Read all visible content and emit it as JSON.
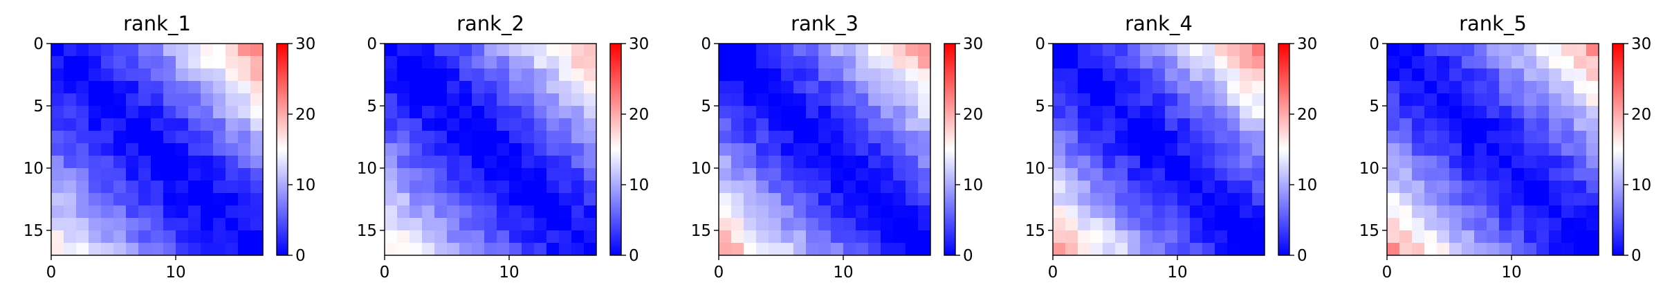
{
  "chart_data": [
    {
      "type": "heatmap",
      "title": "rank_1",
      "size": 17,
      "xticks": [
        0,
        10
      ],
      "yticks": [
        0,
        5,
        10,
        15
      ],
      "colorbar": {
        "min": 0,
        "max": 30,
        "ticks": [
          0,
          10,
          20,
          30
        ],
        "colormap": "bwr"
      },
      "corner_values": {
        "top_right": 22,
        "bottom_left": 16
      },
      "diagonal_value": 0
    },
    {
      "type": "heatmap",
      "title": "rank_2",
      "size": 17,
      "xticks": [
        0,
        10
      ],
      "yticks": [
        0,
        5,
        10,
        15
      ],
      "colorbar": {
        "min": 0,
        "max": 30,
        "ticks": [
          0,
          10,
          20,
          30
        ],
        "colormap": "bwr"
      },
      "corner_values": {
        "top_right": 20,
        "bottom_left": 17
      },
      "diagonal_value": 0
    },
    {
      "type": "heatmap",
      "title": "rank_3",
      "size": 17,
      "xticks": [
        0,
        10
      ],
      "yticks": [
        0,
        5,
        10,
        15
      ],
      "colorbar": {
        "min": 0,
        "max": 30,
        "ticks": [
          0,
          10,
          20,
          30
        ],
        "colormap": "bwr"
      },
      "corner_values": {
        "top_right": 21,
        "bottom_left": 20
      },
      "diagonal_value": 0
    },
    {
      "type": "heatmap",
      "title": "rank_4",
      "size": 17,
      "xticks": [
        0,
        10
      ],
      "yticks": [
        0,
        5,
        10,
        15
      ],
      "colorbar": {
        "min": 0,
        "max": 30,
        "ticks": [
          0,
          10,
          20,
          30
        ],
        "colormap": "bwr"
      },
      "corner_values": {
        "top_right": 22,
        "bottom_left": 20
      },
      "diagonal_value": 0
    },
    {
      "type": "heatmap",
      "title": "rank_5",
      "size": 17,
      "xticks": [
        0,
        10
      ],
      "yticks": [
        0,
        5,
        10,
        15
      ],
      "colorbar": {
        "min": 0,
        "max": 30,
        "ticks": [
          0,
          10,
          20,
          30
        ],
        "colormap": "bwr"
      },
      "corner_values": {
        "top_right": 21,
        "bottom_left": 21
      },
      "diagonal_value": 0
    }
  ]
}
